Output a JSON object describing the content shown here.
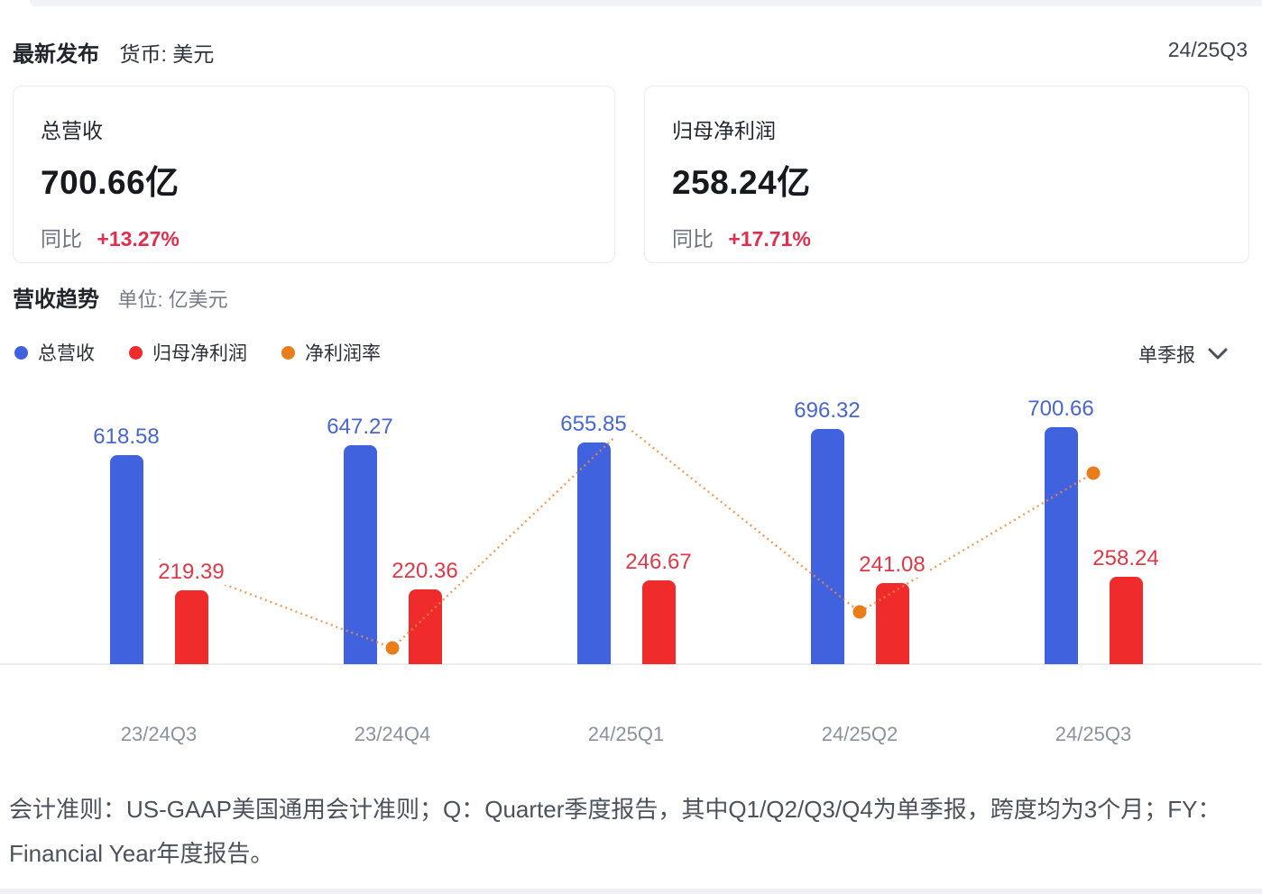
{
  "header": {
    "title": "最新发布",
    "currency_label": "货币: 美元",
    "period": "24/25Q3"
  },
  "cards": [
    {
      "label": "总营收",
      "value": "700.66亿",
      "yoy_label": "同比",
      "yoy_value": "+13.27%"
    },
    {
      "label": "归母净利润",
      "value": "258.24亿",
      "yoy_label": "同比",
      "yoy_value": "+17.71%"
    }
  ],
  "section": {
    "title": "营收趋势",
    "unit": "单位: 亿美元"
  },
  "legend": [
    {
      "label": "总营收",
      "color": "#4162de"
    },
    {
      "label": "归母净利润",
      "color": "#ef2b2b"
    },
    {
      "label": "净利润率",
      "color": "#e87d1a"
    }
  ],
  "period_selector": {
    "label": "单季报",
    "icon": "chevron-down-icon"
  },
  "chart_data": {
    "type": "bar",
    "title": "营收趋势",
    "unit": "亿美元",
    "legend_position": "top-left",
    "grid": false,
    "categories": [
      "23/24Q3",
      "23/24Q4",
      "24/25Q1",
      "24/25Q2",
      "24/25Q3"
    ],
    "series": [
      {
        "name": "总营收",
        "type": "bar",
        "color": "#4162de",
        "label_color": "#4766cf",
        "values": [
          618.58,
          647.27,
          655.85,
          696.32,
          700.66
        ]
      },
      {
        "name": "归母净利润",
        "type": "bar",
        "color": "#ef2b2b",
        "label_color": "#e13848",
        "values": [
          219.39,
          220.36,
          246.67,
          241.08,
          258.24
        ]
      },
      {
        "name": "净利润率",
        "type": "line",
        "color": "#e87d1a",
        "style": "dotted",
        "values_pct_estimated": [
          35.5,
          34.0,
          37.6,
          34.6,
          36.9
        ]
      }
    ],
    "ylim": [
      0,
      792
    ]
  },
  "footer": {
    "text": "会计准则：US-GAAP美国通用会计准则；Q：Quarter季度报告，其中Q1/Q2/Q3/Q4为单季报，跨度均为3个月；FY：Financial Year年度报告。"
  }
}
